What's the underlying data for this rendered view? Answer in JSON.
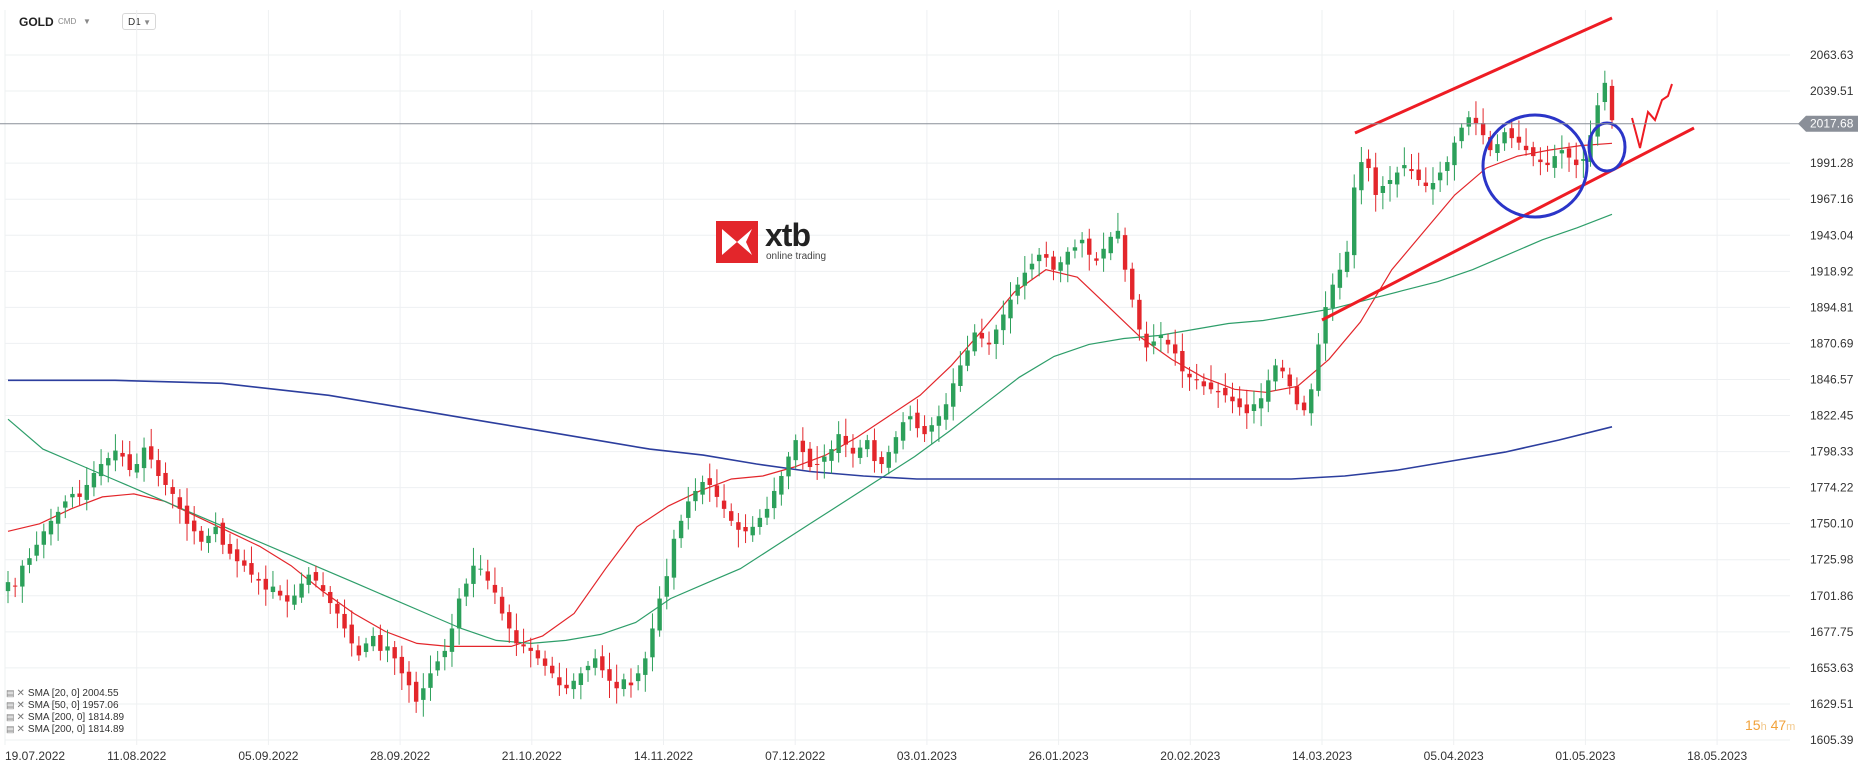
{
  "header": {
    "symbol": "GOLD",
    "instrument_type": "CMD",
    "timeframe": "D1"
  },
  "logo": {
    "brand": "xtb",
    "tagline": "online trading"
  },
  "current_price": {
    "label": "2017.68",
    "value": 2017.68
  },
  "timer": {
    "hours": "15",
    "h_unit": "h",
    "minutes": "47",
    "m_unit": "m"
  },
  "legend": [
    {
      "label": "SMA [20, 0] 2004.55",
      "color": "#e3262b"
    },
    {
      "label": "SMA [50, 0] 1957.06",
      "color": "#2e9e6a"
    },
    {
      "label": "SMA [200, 0] 1814.89",
      "color": "#2c3e9e"
    },
    {
      "label": "SMA [200, 0] 1814.89",
      "color": "#2c3e9e"
    }
  ],
  "colors": {
    "bull": "#2ca05a",
    "bear": "#e3262b",
    "sma20": "#e3262b",
    "sma50": "#2e9e6a",
    "sma200": "#2c3e9e",
    "annotation_red": "#ee1c24",
    "annotation_blue": "#2b35c8"
  },
  "chart_data": {
    "type": "candlestick",
    "title": "GOLD",
    "ylim": [
      1605.39,
      2063.63
    ],
    "y_ticks": [
      "2063.63",
      "2039.51",
      "1991.28",
      "1967.16",
      "1943.04",
      "1918.92",
      "1894.81",
      "1870.69",
      "1846.57",
      "1822.45",
      "1798.33",
      "1774.22",
      "1750.10",
      "1725.98",
      "1701.86",
      "1677.75",
      "1653.63",
      "1629.51",
      "1605.39"
    ],
    "x_ticks": [
      "19.07.2022",
      "11.08.2022",
      "05.09.2022",
      "28.09.2022",
      "21.10.2022",
      "14.11.2022",
      "07.12.2022",
      "03.01.2023",
      "26.01.2023",
      "20.02.2023",
      "14.03.2023",
      "05.04.2023",
      "01.05.2023",
      "18.05.2023"
    ],
    "close_series_approx": [
      1711,
      1708,
      1722,
      1727,
      1736,
      1745,
      1752,
      1758,
      1765,
      1770,
      1768,
      1776,
      1784,
      1790,
      1794,
      1799,
      1795,
      1786,
      1790,
      1801,
      1793,
      1782,
      1776,
      1770,
      1760,
      1750,
      1745,
      1738,
      1742,
      1748,
      1736,
      1730,
      1725,
      1722,
      1716,
      1712,
      1706,
      1708,
      1702,
      1698,
      1702,
      1710,
      1716,
      1712,
      1705,
      1697,
      1690,
      1680,
      1670,
      1662,
      1670,
      1675,
      1665,
      1668,
      1660,
      1650,
      1642,
      1631,
      1640,
      1650,
      1658,
      1665,
      1680,
      1700,
      1710,
      1722,
      1720,
      1712,
      1704,
      1690,
      1680,
      1670,
      1668,
      1665,
      1660,
      1655,
      1650,
      1642,
      1640,
      1645,
      1650,
      1655,
      1660,
      1652,
      1645,
      1640,
      1646,
      1642,
      1650,
      1660,
      1680,
      1700,
      1715,
      1740,
      1752,
      1765,
      1772,
      1778,
      1776,
      1768,
      1760,
      1752,
      1746,
      1745,
      1748,
      1754,
      1760,
      1772,
      1782,
      1795,
      1806,
      1798,
      1788,
      1790,
      1795,
      1800,
      1810,
      1803,
      1797,
      1801,
      1806,
      1792,
      1790,
      1798,
      1808,
      1818,
      1822,
      1814,
      1810,
      1816,
      1822,
      1830,
      1844,
      1856,
      1866,
      1878,
      1874,
      1870,
      1880,
      1890,
      1900,
      1910,
      1918,
      1924,
      1930,
      1928,
      1920,
      1925,
      1932,
      1935,
      1940,
      1930,
      1926,
      1934,
      1942,
      1946,
      1920,
      1900,
      1880,
      1868,
      1872,
      1876,
      1870,
      1864,
      1852,
      1848,
      1846,
      1842,
      1840,
      1838,
      1836,
      1832,
      1828,
      1824,
      1830,
      1834,
      1846,
      1856,
      1852,
      1842,
      1830,
      1826,
      1840,
      1870,
      1895,
      1910,
      1920,
      1932,
      1975,
      1992,
      1988,
      1970,
      1976,
      1980,
      1985,
      1990,
      1986,
      1980,
      1976,
      1978,
      1985,
      1992,
      2005,
      2015,
      2022,
      2018,
      2010,
      2000,
      2004,
      2012,
      2008,
      2005,
      2000,
      1996,
      1992,
      1990,
      1996,
      2000,
      1995,
      1990,
      1994,
      2010,
      2030,
      2045,
      2020
    ],
    "series": [
      {
        "name": "SMA [20, 0] 2004.55",
        "values_approx": [
          1745,
          1750,
          1760,
          1768,
          1770,
          1765,
          1755,
          1745,
          1735,
          1722,
          1705,
          1690,
          1678,
          1670,
          1668,
          1668,
          1668,
          1675,
          1690,
          1720,
          1748,
          1762,
          1772,
          1780,
          1782,
          1788,
          1796,
          1808,
          1822,
          1836,
          1856,
          1880,
          1905,
          1920,
          1915,
          1895,
          1875,
          1860,
          1848,
          1840,
          1838,
          1842,
          1860,
          1885,
          1920,
          1945,
          1970,
          1988,
          1996,
          2000,
          2003,
          2004.55
        ]
      },
      {
        "name": "SMA [50, 0] 1957.06",
        "values_approx": [
          1820,
          1800,
          1790,
          1780,
          1770,
          1760,
          1750,
          1740,
          1730,
          1720,
          1710,
          1700,
          1690,
          1680,
          1672,
          1670,
          1672,
          1676,
          1684,
          1700,
          1710,
          1720,
          1735,
          1750,
          1765,
          1780,
          1795,
          1812,
          1830,
          1848,
          1862,
          1870,
          1874,
          1876,
          1880,
          1884,
          1886,
          1890,
          1894,
          1900,
          1906,
          1912,
          1920,
          1930,
          1940,
          1948,
          1957.06
        ]
      },
      {
        "name": "SMA [200, 0] 1814.89",
        "values_approx": [
          1846,
          1846,
          1846,
          1845,
          1844,
          1840,
          1836,
          1830,
          1824,
          1818,
          1812,
          1806,
          1800,
          1796,
          1790,
          1785,
          1782,
          1780,
          1780,
          1780,
          1780,
          1780,
          1780,
          1780,
          1780,
          1782,
          1786,
          1792,
          1798,
          1806,
          1814.89
        ]
      }
    ],
    "annotations": [
      {
        "type": "channel-upper",
        "from": [
          "13.03.2023",
          2010
        ],
        "to": [
          "05.05.2023",
          2084
        ]
      },
      {
        "type": "channel-lower",
        "from": [
          "13.03.2023",
          1888
        ],
        "to": [
          "16.05.2023",
          2009
        ]
      },
      {
        "type": "ellipse",
        "at": "24.04.2023",
        "price": 1990
      },
      {
        "type": "ellipse",
        "at": "01.05.2023",
        "price": 1998
      },
      {
        "type": "scribble-arrow",
        "at": "10.05.2023"
      }
    ]
  }
}
